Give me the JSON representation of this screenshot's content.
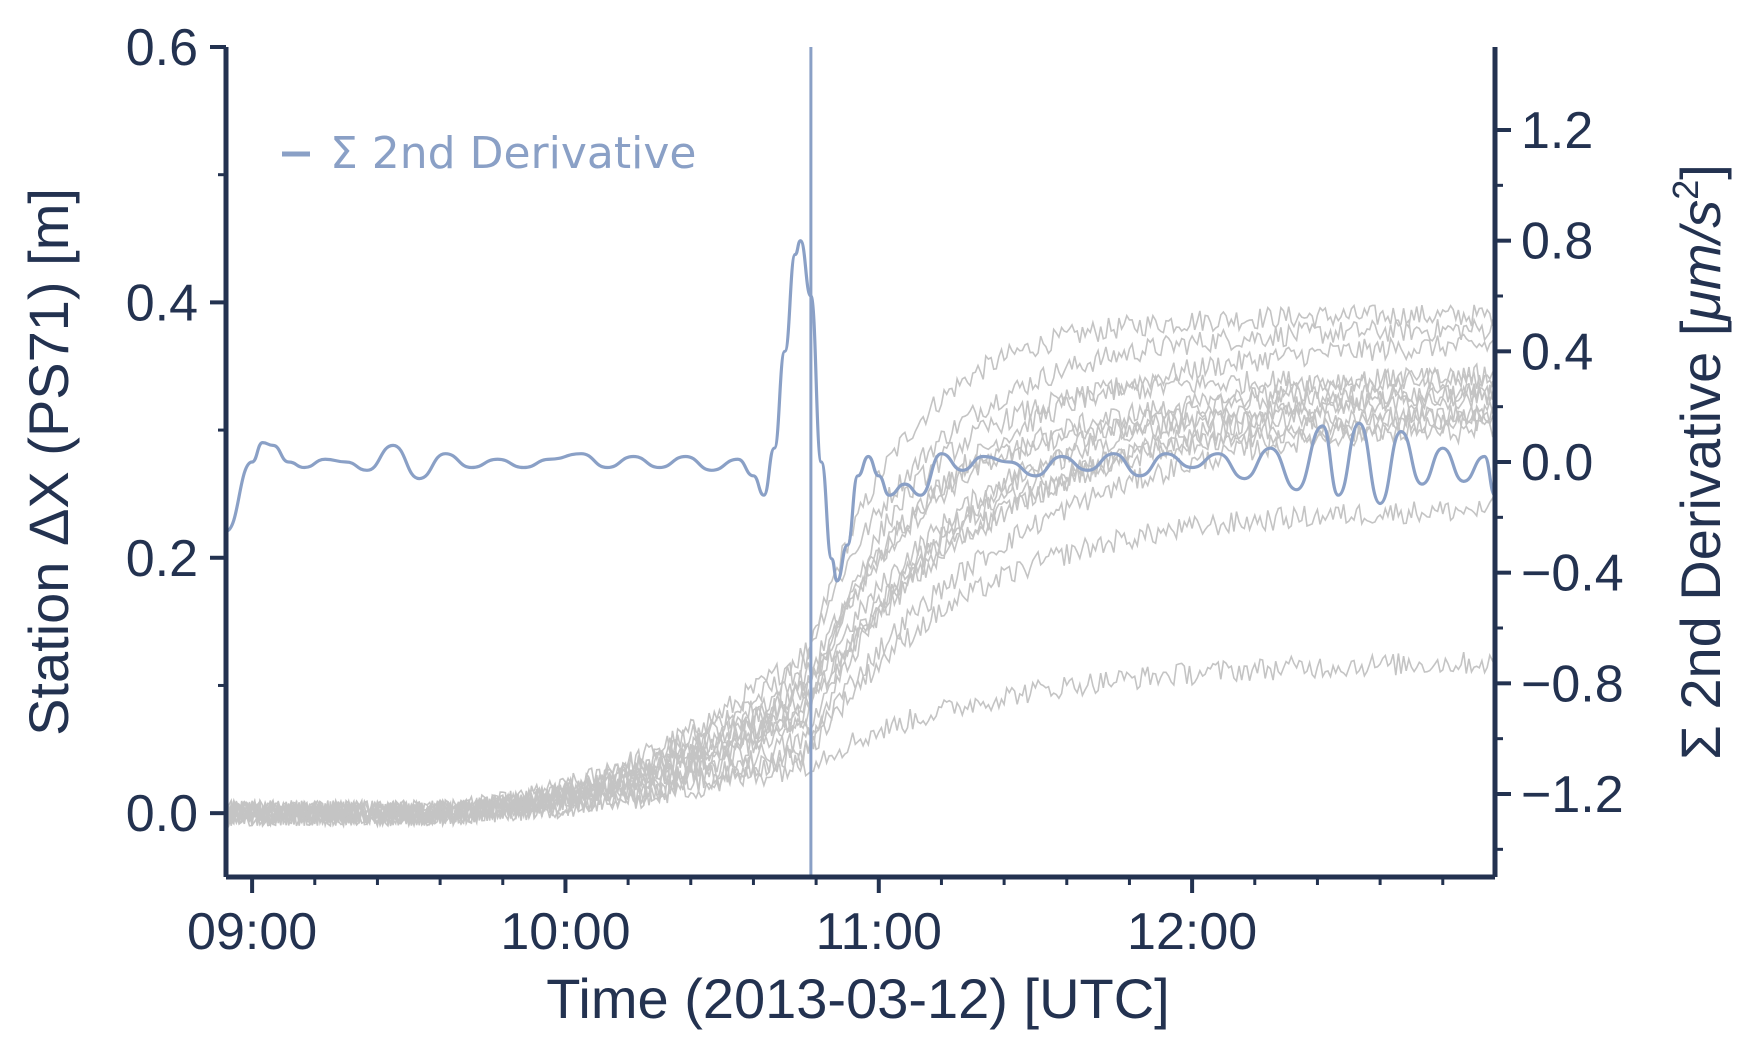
{
  "chart_data": {
    "type": "line",
    "xlabel": "Time (2013-03-12) [UTC]",
    "ylabel_left": "Station ΔX (PS71) [m]",
    "ylabel_right_prefix": "Σ 2nd Derivative [",
    "ylabel_right_unit": "μm/s",
    "ylabel_right_power": "2",
    "ylabel_right_suffix": "]",
    "xlim": [
      "08:55",
      "12:58"
    ],
    "ylim_left": [
      -0.05,
      0.6
    ],
    "ylim_right": [
      -1.5,
      1.5
    ],
    "x_ticks": [
      "09:00",
      "10:00",
      "11:00",
      "12:00"
    ],
    "y_ticks_left": [
      "0.0",
      "0.2",
      "0.4",
      "0.6"
    ],
    "y_ticks_right": [
      "−1.2",
      "−0.8",
      "−0.4",
      "0.0",
      "0.4",
      "0.8",
      "1.2"
    ],
    "legend": {
      "position": "top-left",
      "entry": "Σ 2nd Derivative"
    },
    "event_time": "10:47",
    "colors": {
      "axis": "#233250",
      "derivative": "#8aa0c6",
      "stations": "#c4c4c4"
    },
    "station_series": [
      {
        "final": 0.39,
        "pre": 0.12,
        "spread": 0.0
      },
      {
        "final": 0.38,
        "pre": 0.13,
        "spread": 0.0
      },
      {
        "final": 0.37,
        "pre": 0.11,
        "spread": 0.0
      },
      {
        "final": 0.35,
        "pre": 0.1,
        "spread": 0.0
      },
      {
        "final": 0.34,
        "pre": 0.09,
        "spread": 0.0
      },
      {
        "final": 0.34,
        "pre": 0.08,
        "spread": 0.0
      },
      {
        "final": 0.33,
        "pre": 0.1,
        "spread": 0.0
      },
      {
        "final": 0.33,
        "pre": 0.07,
        "spread": 0.0
      },
      {
        "final": 0.32,
        "pre": 0.09,
        "spread": 0.0
      },
      {
        "final": 0.32,
        "pre": 0.06,
        "spread": 0.0
      },
      {
        "final": 0.31,
        "pre": 0.08,
        "spread": 0.0
      },
      {
        "final": 0.3,
        "pre": 0.05,
        "spread": 0.0
      },
      {
        "final": 0.24,
        "pre": 0.05,
        "spread": 0.0
      },
      {
        "final": 0.12,
        "pre": 0.04,
        "spread": 0.0
      }
    ],
    "derivative_series": {
      "name": "Σ 2nd Derivative",
      "points": [
        [
          "08:55",
          -0.25
        ],
        [
          "09:00",
          0.0
        ],
        [
          "09:02",
          0.07
        ],
        [
          "09:04",
          0.06
        ],
        [
          "09:07",
          0.0
        ],
        [
          "09:10",
          -0.02
        ],
        [
          "09:14",
          0.01
        ],
        [
          "09:18",
          0.0
        ],
        [
          "09:22",
          -0.03
        ],
        [
          "09:27",
          0.06
        ],
        [
          "09:32",
          -0.06
        ],
        [
          "09:37",
          0.03
        ],
        [
          "09:42",
          -0.02
        ],
        [
          "09:47",
          0.01
        ],
        [
          "09:52",
          -0.02
        ],
        [
          "09:57",
          0.01
        ],
        [
          "10:03",
          0.03
        ],
        [
          "10:08",
          -0.02
        ],
        [
          "10:13",
          0.02
        ],
        [
          "10:18",
          -0.02
        ],
        [
          "10:23",
          0.02
        ],
        [
          "10:28",
          -0.03
        ],
        [
          "10:33",
          0.01
        ],
        [
          "10:36",
          -0.05
        ],
        [
          "10:38",
          -0.12
        ],
        [
          "10:40",
          0.05
        ],
        [
          "10:42",
          0.4
        ],
        [
          "10:44",
          0.75
        ],
        [
          "10:45",
          0.8
        ],
        [
          "10:47",
          0.6
        ],
        [
          "10:49",
          0.0
        ],
        [
          "10:51",
          -0.35
        ],
        [
          "10:52",
          -0.43
        ],
        [
          "10:54",
          -0.3
        ],
        [
          "10:56",
          -0.05
        ],
        [
          "10:58",
          0.02
        ],
        [
          "11:00",
          -0.05
        ],
        [
          "11:02",
          -0.12
        ],
        [
          "11:05",
          -0.08
        ],
        [
          "11:08",
          -0.12
        ],
        [
          "11:12",
          0.03
        ],
        [
          "11:16",
          -0.03
        ],
        [
          "11:20",
          0.02
        ],
        [
          "11:25",
          0.0
        ],
        [
          "11:30",
          -0.05
        ],
        [
          "11:35",
          0.02
        ],
        [
          "11:40",
          -0.03
        ],
        [
          "11:45",
          0.03
        ],
        [
          "11:50",
          -0.05
        ],
        [
          "11:55",
          0.03
        ],
        [
          "12:00",
          -0.02
        ],
        [
          "12:05",
          0.03
        ],
        [
          "12:10",
          -0.06
        ],
        [
          "12:15",
          0.05
        ],
        [
          "12:20",
          -0.1
        ],
        [
          "12:25",
          0.13
        ],
        [
          "12:28",
          -0.12
        ],
        [
          "12:32",
          0.14
        ],
        [
          "12:36",
          -0.15
        ],
        [
          "12:40",
          0.11
        ],
        [
          "12:44",
          -0.08
        ],
        [
          "12:48",
          0.05
        ],
        [
          "12:52",
          -0.07
        ],
        [
          "12:56",
          0.02
        ],
        [
          "12:58",
          -0.12
        ]
      ]
    }
  }
}
